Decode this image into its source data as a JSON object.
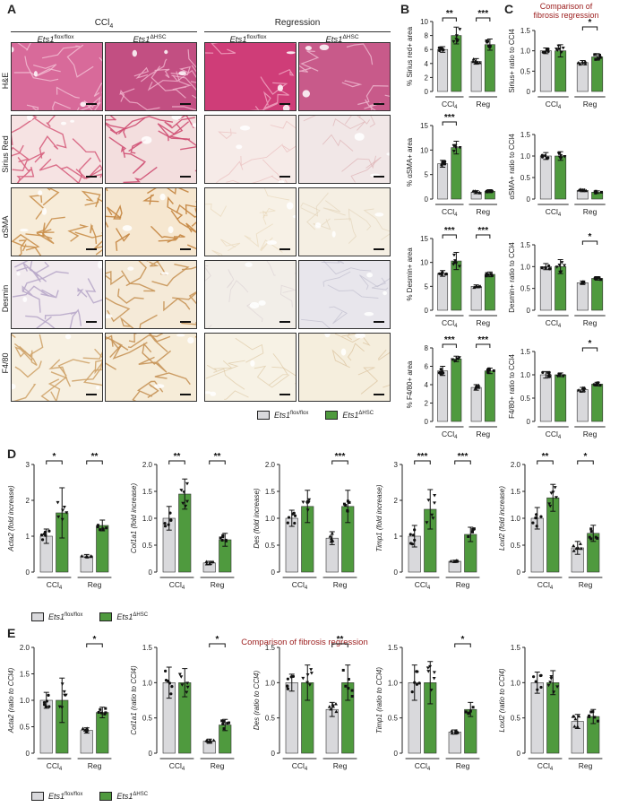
{
  "panels": {
    "A": "A",
    "B": "B",
    "C": "C",
    "D": "D",
    "E": "E"
  },
  "colors": {
    "control": "#d9d9dc",
    "ko": "#4f9a3e",
    "accent": "#9b1c1c"
  },
  "panelA": {
    "group_ccl4_base": "CCl",
    "group_ccl4_sub": "4",
    "group_regression": "Regression",
    "columns": [
      {
        "base": "Ets1",
        "sup": "flox/flox"
      },
      {
        "base": "Ets1",
        "sup": "ΔHSC"
      },
      {
        "base": "Ets1",
        "sup": "flox/flox"
      },
      {
        "base": "Ets1",
        "sup": "ΔHSC"
      }
    ],
    "rows": [
      "H&E",
      "Sirius Red",
      "αSMA",
      "Desmin",
      "F4/80"
    ]
  },
  "panelC_title": [
    "Comparison of",
    "fibrosis regression"
  ],
  "panelE_title": "Comparison of fibrosis regression",
  "x_groups": {
    "ccl4_base": "CCl",
    "ccl4_sub": "4",
    "reg": "Reg"
  },
  "legend": {
    "control_base": "Ets1",
    "control_sup": "flox/flox",
    "ko_base": "Ets1",
    "ko_sup": "ΔHSC"
  },
  "chart_data": [
    {
      "id": "B1",
      "type": "bar",
      "ylabel": "% Sirius red+ area",
      "ylim": [
        0,
        10
      ],
      "yticks": [
        0,
        2,
        4,
        6,
        8,
        10
      ],
      "categories": [
        "CCl4",
        "Reg"
      ],
      "series": [
        {
          "name": "Ets1 flox/flox",
          "values": [
            6.0,
            4.3
          ]
        },
        {
          "name": "Ets1 ΔHSC",
          "values": [
            8.0,
            6.7
          ]
        }
      ],
      "errors": [
        [
          0.4,
          0.4
        ],
        [
          1.2,
          0.8
        ]
      ],
      "significance": [
        "**",
        "***"
      ]
    },
    {
      "id": "B2",
      "type": "bar",
      "ylabel": "% αSMA+ area",
      "ylim": [
        0,
        15
      ],
      "yticks": [
        0,
        5,
        10,
        15
      ],
      "categories": [
        "CCl4",
        "Reg"
      ],
      "series": [
        {
          "name": "Ets1 flox/flox",
          "values": [
            7.2,
            1.4
          ]
        },
        {
          "name": "Ets1 ΔHSC",
          "values": [
            10.5,
            1.6
          ]
        }
      ],
      "errors": [
        [
          0.7,
          0.3
        ],
        [
          1.3,
          0.3
        ]
      ],
      "significance": [
        "***",
        ""
      ]
    },
    {
      "id": "B3",
      "type": "bar",
      "ylabel": "% Desmin+ area",
      "ylim": [
        0,
        15
      ],
      "yticks": [
        0,
        5,
        10,
        15
      ],
      "categories": [
        "CCl4",
        "Reg"
      ],
      "series": [
        {
          "name": "Ets1 flox/flox",
          "values": [
            7.7,
            5.0
          ]
        },
        {
          "name": "Ets1 ΔHSC",
          "values": [
            10.3,
            7.5
          ]
        }
      ],
      "errors": [
        [
          0.6,
          0.3
        ],
        [
          1.8,
          0.5
        ]
      ],
      "significance": [
        "***",
        "***"
      ]
    },
    {
      "id": "B4",
      "type": "bar",
      "ylabel": "% F4/80+ area",
      "ylim": [
        0,
        8
      ],
      "yticks": [
        0,
        2,
        4,
        6,
        8
      ],
      "categories": [
        "CCl4",
        "Reg"
      ],
      "series": [
        {
          "name": "Ets1 flox/flox",
          "values": [
            5.5,
            3.7
          ]
        },
        {
          "name": "Ets1 ΔHSC",
          "values": [
            6.8,
            5.5
          ]
        }
      ],
      "errors": [
        [
          0.5,
          0.3
        ],
        [
          0.3,
          0.3
        ]
      ],
      "significance": [
        "***",
        "***"
      ]
    },
    {
      "id": "C1",
      "type": "bar",
      "ylabel": "Sirius+ ratio to CCl4",
      "ylim": [
        0,
        1.5
      ],
      "yticks": [
        0,
        0.5,
        1.0,
        1.5
      ],
      "categories": [
        "CCl4",
        "Reg"
      ],
      "series": [
        {
          "name": "Ets1 flox/flox",
          "values": [
            1.0,
            0.71
          ]
        },
        {
          "name": "Ets1 ΔHSC",
          "values": [
            1.0,
            0.85
          ]
        }
      ],
      "errors": [
        [
          0.07,
          0.05
        ],
        [
          0.15,
          0.08
        ]
      ],
      "significance": [
        "",
        "*"
      ]
    },
    {
      "id": "C2",
      "type": "bar",
      "ylabel": "αSMA+ ratio to CCl4",
      "ylim": [
        0,
        1.5
      ],
      "yticks": [
        0,
        0.5,
        1.0,
        1.5
      ],
      "categories": [
        "CCl4",
        "Reg"
      ],
      "series": [
        {
          "name": "Ets1 flox/flox",
          "values": [
            1.0,
            0.2
          ]
        },
        {
          "name": "Ets1 ΔHSC",
          "values": [
            1.0,
            0.16
          ]
        }
      ],
      "errors": [
        [
          0.08,
          0.03
        ],
        [
          0.1,
          0.03
        ]
      ],
      "significance": [
        "",
        ""
      ]
    },
    {
      "id": "C3",
      "type": "bar",
      "ylabel": "Desmin+ ratio to CCl4",
      "ylim": [
        0,
        1.5
      ],
      "yticks": [
        0,
        0.5,
        1.0,
        1.5
      ],
      "categories": [
        "CCl4",
        "Reg"
      ],
      "series": [
        {
          "name": "Ets1 flox/flox",
          "values": [
            1.0,
            0.63
          ]
        },
        {
          "name": "Ets1 ΔHSC",
          "values": [
            1.0,
            0.73
          ]
        }
      ],
      "errors": [
        [
          0.07,
          0.04
        ],
        [
          0.16,
          0.04
        ]
      ],
      "significance": [
        "",
        "*"
      ]
    },
    {
      "id": "C4",
      "type": "bar",
      "ylabel": "F4/80+ ratio to CCl4",
      "ylim": [
        0,
        1.5
      ],
      "yticks": [
        0,
        0.5,
        1.0,
        1.5
      ],
      "categories": [
        "CCl4",
        "Reg"
      ],
      "series": [
        {
          "name": "Ets1 flox/flox",
          "values": [
            1.0,
            0.68
          ]
        },
        {
          "name": "Ets1 ΔHSC",
          "values": [
            1.0,
            0.8
          ]
        }
      ],
      "errors": [
        [
          0.07,
          0.05
        ],
        [
          0.04,
          0.04
        ]
      ],
      "significance": [
        "",
        "*"
      ]
    },
    {
      "id": "D1",
      "type": "bar",
      "ylabel": "Acta2 (fold increase)",
      "ylim": [
        0,
        3
      ],
      "yticks": [
        0,
        1,
        2,
        3
      ],
      "categories": [
        "CCl4",
        "Reg"
      ],
      "series": [
        {
          "name": "Ets1 flox/flox",
          "values": [
            1.0,
            0.45
          ]
        },
        {
          "name": "Ets1 ΔHSC",
          "values": [
            1.65,
            1.3
          ]
        }
      ],
      "errors": [
        [
          0.2,
          0.04
        ],
        [
          0.7,
          0.15
        ]
      ],
      "significance": [
        "*",
        "**"
      ]
    },
    {
      "id": "D2",
      "type": "bar",
      "ylabel": "Col1a1 (fold increase)",
      "ylim": [
        0,
        2.0
      ],
      "yticks": [
        0,
        0.5,
        1.0,
        1.5,
        2.0
      ],
      "categories": [
        "CCl4",
        "Reg"
      ],
      "series": [
        {
          "name": "Ets1 flox/flox",
          "values": [
            1.0,
            0.17
          ]
        },
        {
          "name": "Ets1 ΔHSC",
          "values": [
            1.45,
            0.6
          ]
        }
      ],
      "errors": [
        [
          0.22,
          0.03
        ],
        [
          0.28,
          0.12
        ]
      ],
      "significance": [
        "**",
        "**"
      ]
    },
    {
      "id": "D3",
      "type": "bar",
      "ylabel": "Des (fold increase)",
      "ylim": [
        0,
        2.0
      ],
      "yticks": [
        0,
        0.5,
        1.0,
        1.5,
        2.0
      ],
      "categories": [
        "CCl4",
        "Reg"
      ],
      "series": [
        {
          "name": "Ets1 flox/flox",
          "values": [
            1.0,
            0.63
          ]
        },
        {
          "name": "Ets1 ΔHSC",
          "values": [
            1.22,
            1.22
          ]
        }
      ],
      "errors": [
        [
          0.15,
          0.12
        ],
        [
          0.3,
          0.3
        ]
      ],
      "significance": [
        "",
        "***"
      ]
    },
    {
      "id": "D4",
      "type": "bar",
      "ylabel": "Timp1 (fold increase)",
      "ylim": [
        0,
        3
      ],
      "yticks": [
        0,
        1,
        2,
        3
      ],
      "categories": [
        "CCl4",
        "Reg"
      ],
      "series": [
        {
          "name": "Ets1 flox/flox",
          "values": [
            1.0,
            0.3
          ]
        },
        {
          "name": "Ets1 ΔHSC",
          "values": [
            1.75,
            1.05
          ]
        }
      ],
      "errors": [
        [
          0.3,
          0.03
        ],
        [
          0.55,
          0.2
        ]
      ],
      "significance": [
        "***",
        "***"
      ]
    },
    {
      "id": "D5",
      "type": "bar",
      "ylabel": "Loxl2 (fold increase)",
      "ylim": [
        0,
        2.0
      ],
      "yticks": [
        0,
        0.5,
        1.0,
        1.5,
        2.0
      ],
      "categories": [
        "CCl4",
        "Reg"
      ],
      "series": [
        {
          "name": "Ets1 flox/flox",
          "values": [
            1.0,
            0.45
          ]
        },
        {
          "name": "Ets1 ΔHSC",
          "values": [
            1.38,
            0.72
          ]
        }
      ],
      "errors": [
        [
          0.2,
          0.12
        ],
        [
          0.25,
          0.15
        ]
      ],
      "significance": [
        "**",
        "*"
      ]
    },
    {
      "id": "E1",
      "type": "bar",
      "ylabel": "Acta2 (ratio to CCl4)",
      "ylim": [
        0,
        2.0
      ],
      "yticks": [
        0,
        0.5,
        1.0,
        1.5,
        2.0
      ],
      "categories": [
        "CCl4",
        "Reg"
      ],
      "series": [
        {
          "name": "Ets1 flox/flox",
          "values": [
            1.0,
            0.43
          ]
        },
        {
          "name": "Ets1 ΔHSC",
          "values": [
            1.0,
            0.77
          ]
        }
      ],
      "errors": [
        [
          0.15,
          0.05
        ],
        [
          0.42,
          0.1
        ]
      ],
      "significance": [
        "",
        "*"
      ]
    },
    {
      "id": "E2",
      "type": "bar",
      "ylabel": "Col1a1 (ratio to CCl4)",
      "ylim": [
        0,
        1.5
      ],
      "yticks": [
        0,
        0.5,
        1.0,
        1.5
      ],
      "categories": [
        "CCl4",
        "Reg"
      ],
      "series": [
        {
          "name": "Ets1 flox/flox",
          "values": [
            1.0,
            0.17
          ]
        },
        {
          "name": "Ets1 ΔHSC",
          "values": [
            1.0,
            0.4
          ]
        }
      ],
      "errors": [
        [
          0.22,
          0.03
        ],
        [
          0.2,
          0.08
        ]
      ],
      "significance": [
        "",
        "*"
      ]
    },
    {
      "id": "E3",
      "type": "bar",
      "ylabel": "Des (ratio to CCl4)",
      "ylim": [
        0,
        1.5
      ],
      "yticks": [
        0,
        0.5,
        1.0,
        1.5
      ],
      "categories": [
        "CCl4",
        "Reg"
      ],
      "series": [
        {
          "name": "Ets1 flox/flox",
          "values": [
            1.0,
            0.62
          ]
        },
        {
          "name": "Ets1 ΔHSC",
          "values": [
            1.0,
            1.0
          ]
        }
      ],
      "errors": [
        [
          0.12,
          0.1
        ],
        [
          0.25,
          0.25
        ]
      ],
      "significance": [
        "",
        "**"
      ]
    },
    {
      "id": "E4",
      "type": "bar",
      "ylabel": "Timp1 (ratio to CCl4)",
      "ylim": [
        0,
        1.5
      ],
      "yticks": [
        0,
        0.5,
        1.0,
        1.5
      ],
      "categories": [
        "CCl4",
        "Reg"
      ],
      "series": [
        {
          "name": "Ets1 flox/flox",
          "values": [
            1.0,
            0.3
          ]
        },
        {
          "name": "Ets1 ΔHSC",
          "values": [
            1.0,
            0.62
          ]
        }
      ],
      "errors": [
        [
          0.25,
          0.03
        ],
        [
          0.3,
          0.1
        ]
      ],
      "significance": [
        "",
        "*"
      ]
    },
    {
      "id": "E5",
      "type": "bar",
      "ylabel": "Loxl2 (ratio to CCl4)",
      "ylim": [
        0,
        1.5
      ],
      "yticks": [
        0,
        0.5,
        1.0,
        1.5
      ],
      "categories": [
        "CCl4",
        "Reg"
      ],
      "series": [
        {
          "name": "Ets1 flox/flox",
          "values": [
            1.0,
            0.45
          ]
        },
        {
          "name": "Ets1 ΔHSC",
          "values": [
            1.0,
            0.52
          ]
        }
      ],
      "errors": [
        [
          0.15,
          0.1
        ],
        [
          0.17,
          0.1
        ]
      ],
      "significance": [
        "",
        ""
      ]
    }
  ]
}
